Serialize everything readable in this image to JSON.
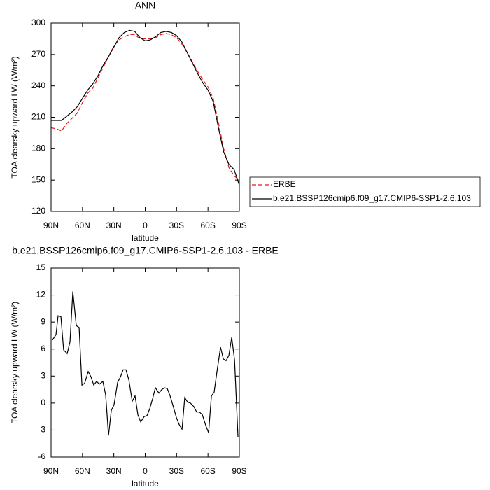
{
  "chart_data": [
    {
      "type": "line",
      "title": "ANN",
      "xlabel": "latitude",
      "ylabel": "TOA clearsky upward LW (W/m²)",
      "x": [
        90,
        85,
        80,
        75,
        70,
        65,
        60,
        55,
        50,
        45,
        40,
        35,
        30,
        25,
        20,
        15,
        10,
        5,
        0,
        -5,
        -10,
        -15,
        -20,
        -25,
        -30,
        -35,
        -40,
        -45,
        -50,
        -55,
        -60,
        -65,
        -70,
        -75,
        -80,
        -85,
        -90
      ],
      "series": [
        {
          "name": "ERBE",
          "color": "#e41a1c",
          "dash": "dashed",
          "values": [
            200,
            199,
            197,
            204,
            209,
            214,
            224,
            233,
            238,
            248,
            258,
            268,
            278,
            284,
            287,
            289,
            289,
            285,
            285,
            285,
            286,
            289,
            290,
            289,
            286,
            280,
            272,
            263,
            254,
            246,
            239,
            228,
            205,
            180,
            162,
            154,
            150
          ]
        },
        {
          "name": "b.e21.BSSP126cmip6.f09_g17.CMIP6-SSP1-2.6.103",
          "color": "#000000",
          "dash": "solid",
          "values": [
            207,
            207,
            207,
            211,
            215,
            220,
            228,
            236,
            242,
            250,
            260,
            268,
            277,
            286,
            291,
            293,
            292,
            286,
            283,
            284,
            287,
            291,
            292,
            291,
            288,
            282,
            272,
            262,
            252,
            243,
            236,
            225,
            200,
            177,
            165,
            160,
            145
          ]
        }
      ],
      "xlim": [
        90,
        -90
      ],
      "xticks": [
        {
          "value": 90,
          "label": "90N"
        },
        {
          "value": 60,
          "label": "60N"
        },
        {
          "value": 30,
          "label": "30N"
        },
        0,
        {
          "value": -30,
          "label": "30S"
        },
        {
          "value": -60,
          "label": "60S"
        },
        {
          "value": -90,
          "label": "90S"
        }
      ],
      "ylim": [
        120,
        300
      ],
      "yticks": [
        120,
        150,
        180,
        210,
        240,
        270,
        300
      ],
      "legend": "right"
    },
    {
      "type": "line",
      "title": "b.e21.BSSP126cmip6.f09_g17.CMIP6-SSP1-2.6.103 - ERBE",
      "xlabel": "latitude",
      "ylabel": "TOA clearsky upward LW (W/m²)",
      "x": [
        88.7,
        85.3,
        83.3,
        80.6,
        78,
        74.6,
        71.9,
        69.2,
        65.9,
        63.2,
        60.5,
        57.9,
        54.5,
        51.8,
        49.2,
        46.5,
        43.8,
        40.5,
        37.8,
        35.1,
        32.4,
        29.8,
        26.4,
        23.7,
        21.1,
        18.4,
        15.7,
        12.4,
        9.7,
        7.0,
        4.3,
        1.0,
        -1.7,
        -4.4,
        -7.1,
        -9.7,
        -13.1,
        -15.8,
        -18.4,
        -21.1,
        -23.8,
        -27.1,
        -29.8,
        -32.5,
        -35.2,
        -37.8,
        -40.5,
        -43.2,
        -46.5,
        -49.2,
        -51.9,
        -54.6,
        -57.9,
        -60.6,
        -63.3,
        -65.9,
        -68.6,
        -72,
        -74.7,
        -77.3,
        -80,
        -82.7,
        -85.4,
        -88.7
      ],
      "series": [
        {
          "name": "diff",
          "color": "#000000",
          "dash": "solid",
          "values": [
            7.0,
            7.6,
            9.7,
            9.6,
            5.9,
            5.5,
            6.8,
            12.4,
            8.6,
            8.4,
            2.0,
            2.2,
            3.5,
            2.9,
            2.0,
            2.4,
            2.1,
            2.4,
            0.9,
            -3.6,
            -0.8,
            -0.2,
            2.3,
            2.9,
            3.7,
            3.7,
            2.6,
            0.2,
            0.8,
            -1.3,
            -2.1,
            -1.5,
            -1.4,
            -0.6,
            0.5,
            1.7,
            1.1,
            1.5,
            1.7,
            1.6,
            0.8,
            -0.5,
            -1.6,
            -2.4,
            -2.9,
            0.6,
            0.1,
            0.0,
            -0.4,
            -1.0,
            -1.0,
            -1.3,
            -2.5,
            -3.3,
            0.8,
            1.2,
            3.5,
            6.2,
            4.9,
            4.7,
            5.3,
            7.3,
            4.8,
            -3.8
          ]
        }
      ],
      "xlim": [
        90,
        -90
      ],
      "xticks": [
        {
          "value": 90,
          "label": "90N"
        },
        {
          "value": 60,
          "label": "60N"
        },
        {
          "value": 30,
          "label": "30N"
        },
        0,
        {
          "value": -30,
          "label": "30S"
        },
        {
          "value": -60,
          "label": "60S"
        },
        {
          "value": -90,
          "label": "90S"
        }
      ],
      "ylim": [
        -6,
        15
      ],
      "yticks": [
        -6,
        -3,
        0,
        3,
        6,
        9,
        12,
        15
      ]
    }
  ]
}
